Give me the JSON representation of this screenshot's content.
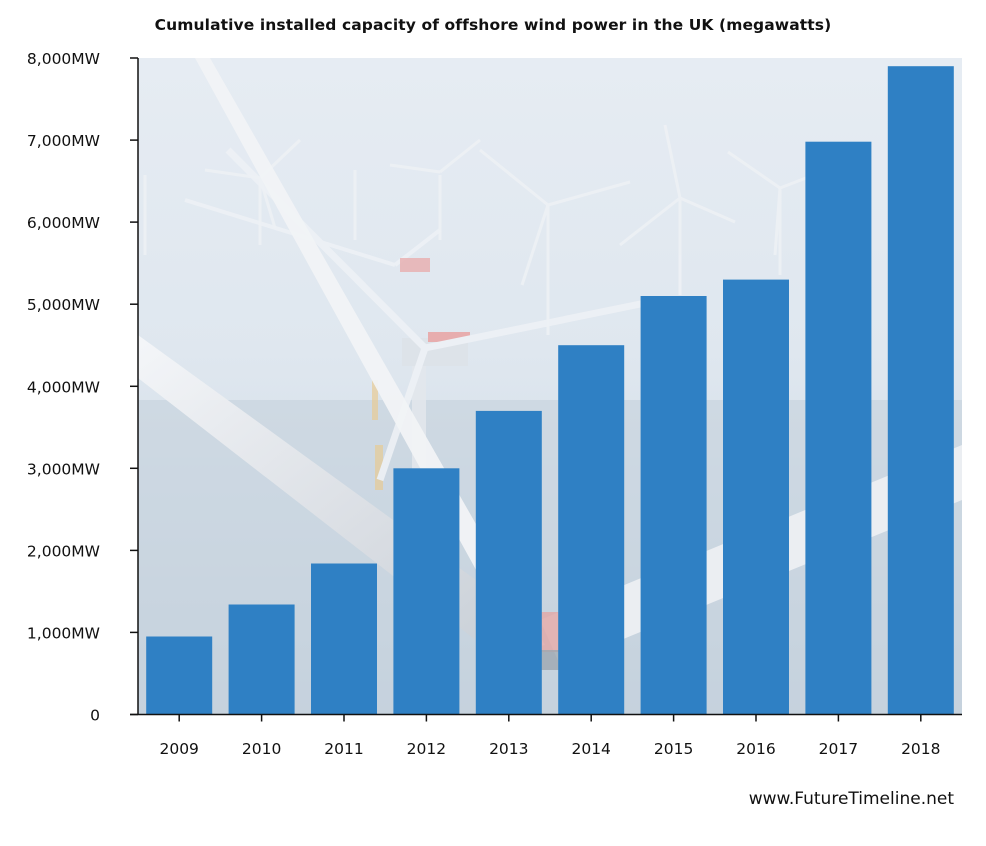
{
  "chart_data": {
    "type": "bar",
    "title": "Cumulative installed capacity of offshore wind power in the UK (megawatts)",
    "xlabel": "",
    "ylabel": "",
    "categories": [
      "2009",
      "2010",
      "2011",
      "2012",
      "2013",
      "2014",
      "2015",
      "2016",
      "2017",
      "2018"
    ],
    "values": [
      950,
      1340,
      1840,
      3000,
      3700,
      4500,
      5100,
      5300,
      6980,
      7900
    ],
    "ylim": [
      0,
      8000
    ],
    "yticks": [
      0,
      1000,
      2000,
      3000,
      4000,
      5000,
      6000,
      7000,
      8000
    ],
    "ytick_labels": [
      "0",
      "1,000MW",
      "2,000MW",
      "3,000MW",
      "4,000MW",
      "5,000MW",
      "6,000MW",
      "7,000MW",
      "8,000MW"
    ],
    "grid": false,
    "bar_color": "#2f80c4",
    "background": "offshore wind turbines photo"
  },
  "watermark": "www.FutureTimeline.net"
}
